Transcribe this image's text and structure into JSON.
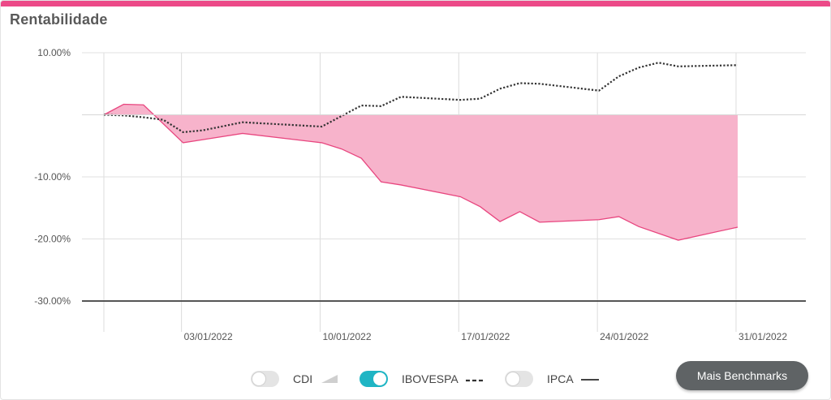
{
  "title": "Rentabilidade",
  "colors": {
    "accent": "#ec4a88",
    "area_fill": "#f7b3cb",
    "area_stroke": "#e8467f",
    "benchmark_line": "#333333",
    "toggle_on": "#1fb5c4",
    "button_bg": "#5f6365"
  },
  "legend": [
    {
      "label": "CDI",
      "enabled": false,
      "marker": "area-wedge-icon"
    },
    {
      "label": "IBOVESPA",
      "enabled": true,
      "marker": "dashed-line-icon"
    },
    {
      "label": "IPCA",
      "enabled": false,
      "marker": "solid-line-icon"
    }
  ],
  "more_button": "Mais Benchmarks",
  "chart_data": {
    "type": "area",
    "ylim": [
      -30,
      10
    ],
    "y_ticks": [
      10,
      -10,
      -20,
      -30
    ],
    "y_tick_labels": [
      "10.00%",
      "-10.00%",
      "-20.00%",
      "-30.00%"
    ],
    "x_ticks": [
      "03/01/2022",
      "10/01/2022",
      "17/01/2022",
      "24/01/2022",
      "31/01/2022"
    ],
    "x_domain": [
      "2021-12-30",
      "2022-01-31"
    ],
    "grid": true,
    "series": [
      {
        "style": "area",
        "points": [
          [
            "2021-12-30",
            0.0
          ],
          [
            "2021-12-31",
            1.7
          ],
          [
            "2022-01-01",
            1.6
          ],
          [
            "2022-01-03",
            -4.5
          ],
          [
            "2022-01-04",
            -4.0
          ],
          [
            "2022-01-06",
            -3.0
          ],
          [
            "2022-01-10",
            -4.5
          ],
          [
            "2022-01-11",
            -5.5
          ],
          [
            "2022-01-12",
            -7.0
          ],
          [
            "2022-01-13",
            -10.8
          ],
          [
            "2022-01-14",
            -11.3
          ],
          [
            "2022-01-17",
            -13.2
          ],
          [
            "2022-01-18",
            -14.8
          ],
          [
            "2022-01-19",
            -17.2
          ],
          [
            "2022-01-20",
            -15.6
          ],
          [
            "2022-01-21",
            -17.3
          ],
          [
            "2022-01-24",
            -16.9
          ],
          [
            "2022-01-25",
            -16.4
          ],
          [
            "2022-01-26",
            -18.0
          ],
          [
            "2022-01-28",
            -20.2
          ],
          [
            "2022-01-31",
            -18.1
          ]
        ]
      },
      {
        "name": "IBOVESPA",
        "style": "dashed",
        "points": [
          [
            "2021-12-30",
            0.0
          ],
          [
            "2021-12-31",
            -0.1
          ],
          [
            "2022-01-01",
            -0.4
          ],
          [
            "2022-01-02",
            -0.8
          ],
          [
            "2022-01-03",
            -2.8
          ],
          [
            "2022-01-04",
            -2.5
          ],
          [
            "2022-01-06",
            -1.2
          ],
          [
            "2022-01-10",
            -1.9
          ],
          [
            "2022-01-12",
            1.5
          ],
          [
            "2022-01-13",
            1.4
          ],
          [
            "2022-01-14",
            2.9
          ],
          [
            "2022-01-17",
            2.4
          ],
          [
            "2022-01-18",
            2.6
          ],
          [
            "2022-01-19",
            4.2
          ],
          [
            "2022-01-20",
            5.1
          ],
          [
            "2022-01-21",
            5.0
          ],
          [
            "2022-01-24",
            3.9
          ],
          [
            "2022-01-25",
            6.2
          ],
          [
            "2022-01-26",
            7.6
          ],
          [
            "2022-01-27",
            8.4
          ],
          [
            "2022-01-28",
            7.8
          ],
          [
            "2022-01-31",
            8.0
          ]
        ]
      }
    ]
  }
}
